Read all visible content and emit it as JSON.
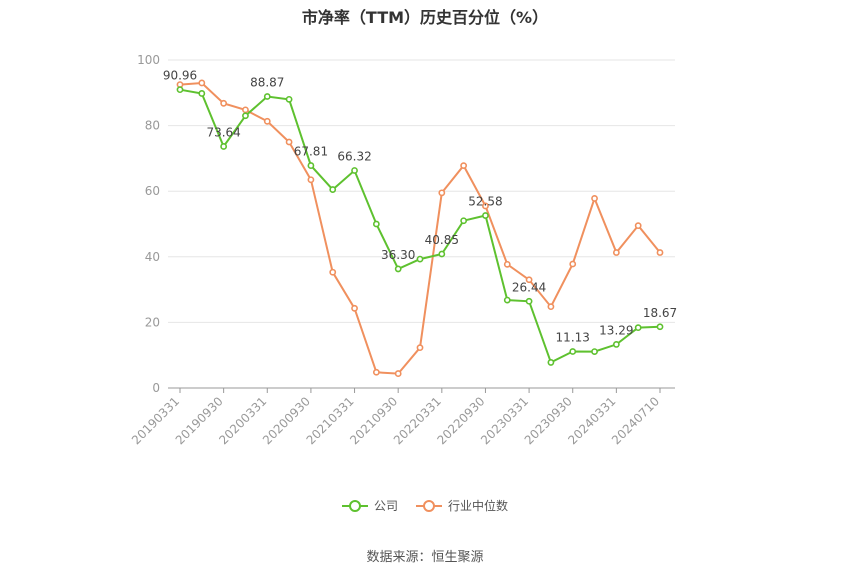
{
  "title": "市净率（TTM）历史百分位（%）",
  "source": "数据来源：恒生聚源",
  "colors": {
    "company": "#5ec12f",
    "industry": "#f0905e",
    "grid": "#e6e6e6",
    "axis": "#999999"
  },
  "legend": {
    "company": "公司",
    "industry": "行业中位数"
  },
  "chart_data": {
    "type": "line",
    "title": "市净率（TTM）历史百分位（%）",
    "ylim": [
      0,
      100
    ],
    "yticks": [
      0,
      20,
      40,
      60,
      80,
      100
    ],
    "x": [
      "20190331",
      "20190630",
      "20190930",
      "20191231",
      "20200331",
      "20200630",
      "20200930",
      "20201231",
      "20210331",
      "20210630",
      "20210930",
      "20211231",
      "20220331",
      "20220630",
      "20220930",
      "20221231",
      "20230331",
      "20230630",
      "20230930",
      "20231231",
      "20240331",
      "20240630",
      "20240710"
    ],
    "xtick_labels": [
      "20190331",
      "20190930",
      "20200331",
      "20200930",
      "20210331",
      "20210930",
      "20220331",
      "20220930",
      "20230331",
      "20230930",
      "20240331",
      "20240710"
    ],
    "legend_position": "bottom",
    "series": [
      {
        "name": "公司",
        "values": [
          90.96,
          89.8,
          73.64,
          83.0,
          88.87,
          88.0,
          67.81,
          60.5,
          66.32,
          50.0,
          36.3,
          39.3,
          40.85,
          51.0,
          52.58,
          26.8,
          26.44,
          7.8,
          11.13,
          11.1,
          13.29,
          18.4,
          18.67
        ],
        "labels": [
          "90.96",
          "",
          "73.64",
          "",
          "88.87",
          "",
          "67.81",
          "",
          "66.32",
          "",
          "36.30",
          "",
          "40.85",
          "",
          "52.58",
          "",
          "26.44",
          "",
          "11.13",
          "",
          "13.29",
          "",
          "18.67"
        ]
      },
      {
        "name": "行业中位数",
        "values": [
          92.5,
          93.0,
          86.8,
          84.8,
          81.3,
          75.0,
          63.5,
          35.3,
          24.3,
          4.8,
          4.4,
          12.3,
          59.5,
          67.8,
          55.5,
          37.7,
          33.0,
          24.8,
          37.8,
          57.8,
          41.3,
          49.5,
          41.3
        ]
      }
    ]
  }
}
